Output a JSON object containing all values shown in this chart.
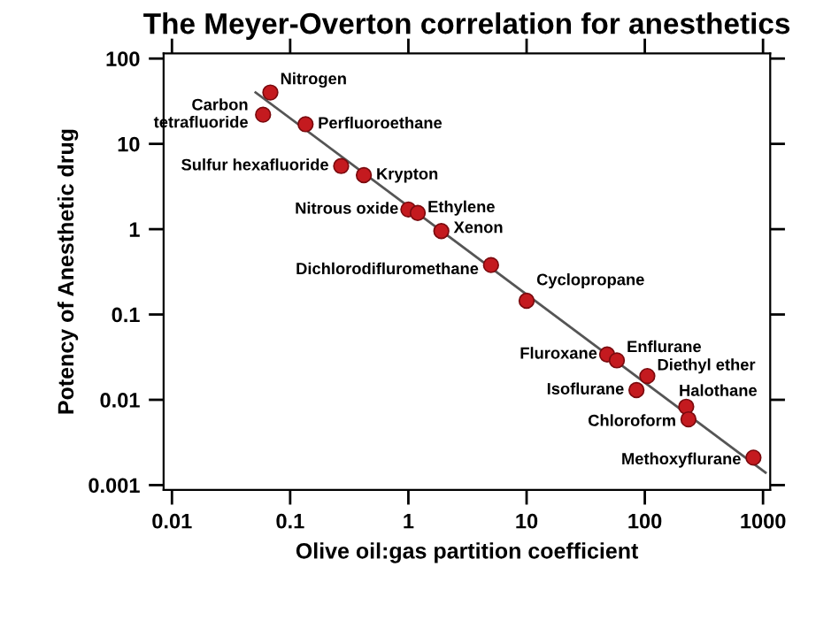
{
  "chart_data": {
    "type": "scatter",
    "title": "The Meyer-Overton correlation for anesthetics",
    "xlabel": "Olive oil:gas partition coefficient",
    "ylabel": "Potency of Anesthetic drug",
    "log": "xy",
    "grid": false,
    "legend": false,
    "xlim": [
      0.0085,
      1150
    ],
    "ylim": [
      0.00088,
      115
    ],
    "xticks": [
      0.01,
      0.1,
      1,
      10,
      100,
      1000
    ],
    "yticks": [
      0.001,
      0.01,
      0.1,
      1,
      10,
      100
    ],
    "series": [
      {
        "marker": "circle",
        "color": "#c41a1f",
        "x": [
          0.068,
          0.059,
          0.135,
          0.27,
          0.42,
          1.0,
          1.2,
          1.9,
          5.0,
          10,
          48,
          58,
          105,
          85,
          224,
          234,
          830
        ],
        "values": [
          40,
          22,
          17,
          5.5,
          4.3,
          1.7,
          1.55,
          0.95,
          0.38,
          0.145,
          0.034,
          0.029,
          0.019,
          0.013,
          0.0083,
          0.0059,
          0.0021
        ]
      },
      {
        "type": "line",
        "marker": "none",
        "color": "#555555",
        "x": [
          0.051,
          1050
        ],
        "values": [
          40,
          0.0014
        ]
      }
    ],
    "annotations": [
      {
        "text": "Nitrogen",
        "x": 0.068,
        "y": 40
      },
      {
        "text": "Carbon\ntetrafluoride",
        "x": 0.059,
        "y": 22
      },
      {
        "text": "Perfluoroethane",
        "x": 0.135,
        "y": 17
      },
      {
        "text": "Sulfur hexafluoride",
        "x": 0.27,
        "y": 5.5
      },
      {
        "text": "Krypton",
        "x": 0.42,
        "y": 4.3
      },
      {
        "text": "Nitrous oxide",
        "x": 1.0,
        "y": 1.7
      },
      {
        "text": "Ethylene",
        "x": 1.2,
        "y": 1.55
      },
      {
        "text": "Xenon",
        "x": 1.9,
        "y": 0.95
      },
      {
        "text": "Dichlorodifluromethane",
        "x": 5.0,
        "y": 0.38
      },
      {
        "text": "Cyclopropane",
        "x": 10,
        "y": 0.145
      },
      {
        "text": "Fluroxane",
        "x": 48,
        "y": 0.034
      },
      {
        "text": "Enflurane",
        "x": 58,
        "y": 0.029
      },
      {
        "text": "Diethyl ether",
        "x": 105,
        "y": 0.019
      },
      {
        "text": "Isoflurane",
        "x": 85,
        "y": 0.013
      },
      {
        "text": "Halothane",
        "x": 224,
        "y": 0.0083
      },
      {
        "text": "Chloroform",
        "x": 234,
        "y": 0.0059
      },
      {
        "text": "Methoxyflurane",
        "x": 830,
        "y": 0.0021
      }
    ]
  }
}
